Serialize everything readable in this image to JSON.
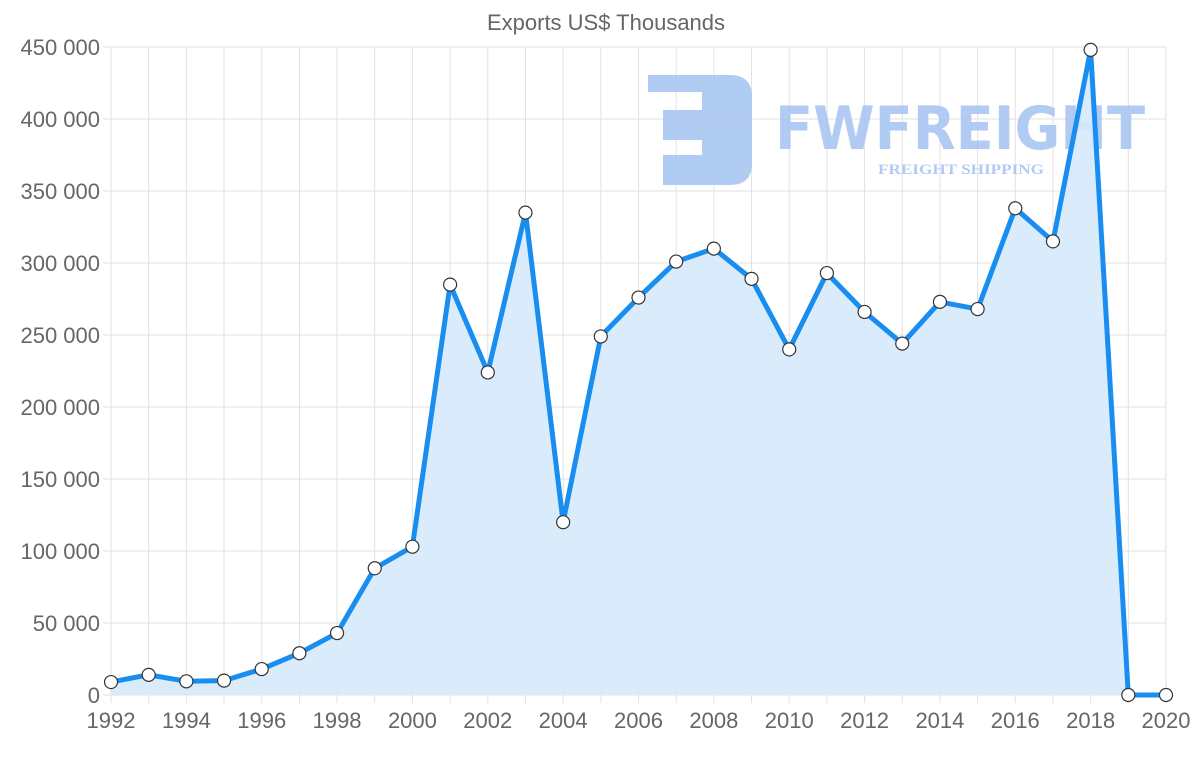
{
  "chart_data": {
    "type": "area",
    "title": "Exports US$ Thousands",
    "xlabel": "",
    "ylabel": "",
    "x": [
      1992,
      1993,
      1994,
      1995,
      1996,
      1997,
      1998,
      1999,
      2000,
      2001,
      2002,
      2003,
      2004,
      2005,
      2006,
      2007,
      2008,
      2009,
      2010,
      2011,
      2012,
      2013,
      2014,
      2015,
      2016,
      2017,
      2018,
      2019,
      2020
    ],
    "series": [
      {
        "name": "Exports US$ Thousands",
        "values": [
          9000,
          14000,
          9500,
          10000,
          18000,
          29000,
          43000,
          88000,
          103000,
          285000,
          224000,
          335000,
          120000,
          249000,
          276000,
          301000,
          310000,
          289000,
          240000,
          293000,
          266000,
          244000,
          273000,
          268000,
          338000,
          315000,
          448000,
          0,
          0
        ]
      }
    ],
    "x_tick_labels": [
      "1992",
      "1994",
      "1996",
      "1998",
      "2000",
      "2002",
      "2004",
      "2006",
      "2008",
      "2010",
      "2012",
      "2014",
      "2016",
      "2018",
      "2020"
    ],
    "y_tick_labels": [
      "0",
      "50 000",
      "100 000",
      "150 000",
      "200 000",
      "250 000",
      "300 000",
      "350 000",
      "400 000",
      "450 000"
    ],
    "y_ticks": [
      0,
      50000,
      100000,
      150000,
      200000,
      250000,
      300000,
      350000,
      400000,
      450000
    ],
    "xlim": [
      1992,
      2020
    ],
    "ylim": [
      0,
      450000
    ],
    "grid": true,
    "legend": "none",
    "colors": {
      "line": "#1a8ef0",
      "fill": "#d6eafc",
      "point_fill": "#ffffff",
      "point_stroke": "#333333"
    }
  },
  "watermark": {
    "brand": "FWFREIGHT",
    "tagline": "FREIGHT SHIPPING",
    "color": "#a9c6f2"
  }
}
